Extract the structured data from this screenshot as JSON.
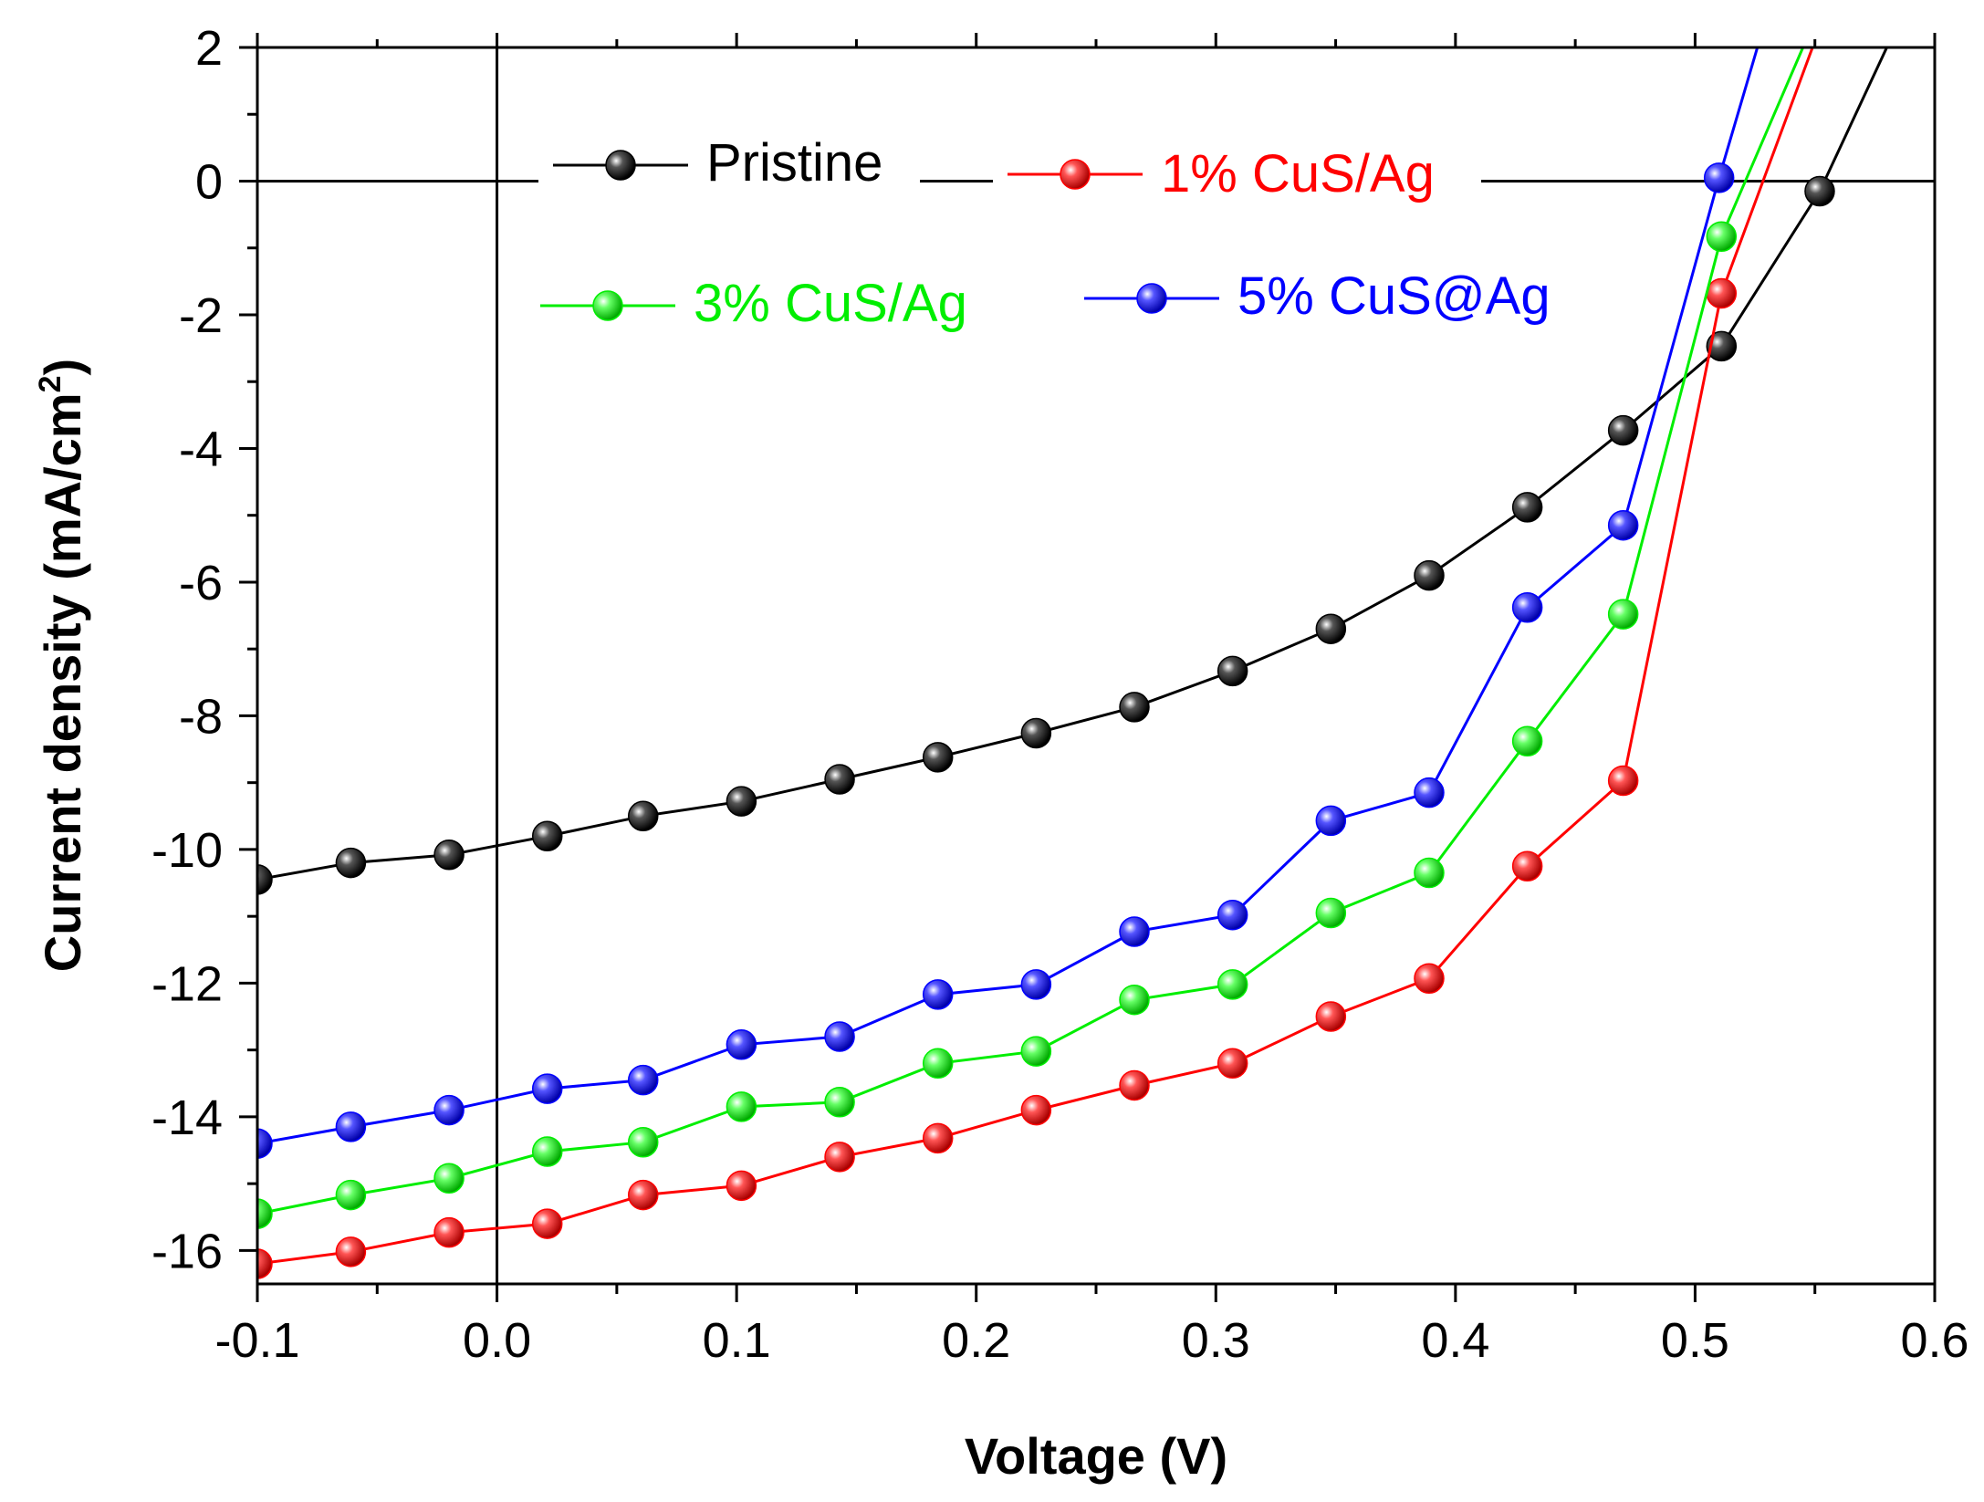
{
  "chart_data": {
    "type": "line",
    "title": "",
    "xlabel": "Voltage (V)",
    "ylabel": "Current density (mA/cm",
    "ylabel_superscript": "2",
    "ylabel_suffix": ")",
    "xlim": [
      -0.1,
      0.6
    ],
    "ylim": [
      -16.5,
      2
    ],
    "xticks": [
      -0.1,
      0.0,
      0.1,
      0.2,
      0.3,
      0.4,
      0.5,
      0.6
    ],
    "xtick_labels": [
      "-0.1",
      "0.0",
      "0.1",
      "0.2",
      "0.3",
      "0.4",
      "0.5",
      "0.6"
    ],
    "yticks": [
      2,
      0,
      -2,
      -4,
      -6,
      -8,
      -10,
      -12,
      -14,
      -16
    ],
    "ytick_labels": [
      "2",
      "0",
      "-2",
      "-4",
      "-6",
      "-8",
      "-10",
      "-12",
      "-14",
      "-16"
    ],
    "grid": false,
    "legend_position": "top-center",
    "series": [
      {
        "name": "Pristine",
        "color": "#000000",
        "x": [
          -0.1,
          -0.061,
          -0.02,
          0.021,
          0.061,
          0.102,
          0.143,
          0.184,
          0.225,
          0.266,
          0.307,
          0.348,
          0.389,
          0.43,
          0.47,
          0.511,
          0.552,
          0.58
        ],
        "y": [
          -10.45,
          -10.2,
          -10.08,
          -9.8,
          -9.5,
          -9.28,
          -8.95,
          -8.62,
          -8.26,
          -7.87,
          -7.33,
          -6.7,
          -5.9,
          -4.88,
          -3.73,
          -2.47,
          -0.15,
          2.0
        ],
        "markers": [
          0,
          1,
          2,
          3,
          4,
          5,
          6,
          7,
          8,
          9,
          10,
          11,
          12,
          13,
          14,
          15,
          16
        ]
      },
      {
        "name": "1% CuS/Ag",
        "color": "#ff0000",
        "x": [
          -0.1,
          -0.061,
          -0.02,
          0.021,
          0.061,
          0.102,
          0.143,
          0.184,
          0.225,
          0.266,
          0.307,
          0.348,
          0.389,
          0.43,
          0.47,
          0.511,
          0.549
        ],
        "y": [
          -16.2,
          -16.02,
          -15.73,
          -15.6,
          -15.17,
          -15.03,
          -14.6,
          -14.32,
          -13.9,
          -13.53,
          -13.2,
          -12.5,
          -11.93,
          -10.25,
          -8.97,
          -1.68,
          2.0
        ],
        "markers": [
          0,
          1,
          2,
          3,
          4,
          5,
          6,
          7,
          8,
          9,
          10,
          11,
          12,
          13,
          14,
          15
        ]
      },
      {
        "name": "3% CuS/Ag",
        "color": "#00ee00",
        "x": [
          -0.1,
          -0.061,
          -0.02,
          0.021,
          0.061,
          0.102,
          0.143,
          0.184,
          0.225,
          0.266,
          0.307,
          0.348,
          0.389,
          0.43,
          0.47,
          0.511,
          0.545
        ],
        "y": [
          -15.45,
          -15.17,
          -14.92,
          -14.52,
          -14.38,
          -13.85,
          -13.78,
          -13.2,
          -13.02,
          -12.25,
          -12.02,
          -10.95,
          -10.35,
          -8.38,
          -6.48,
          -0.83,
          2.0
        ],
        "markers": [
          0,
          1,
          2,
          3,
          4,
          5,
          6,
          7,
          8,
          9,
          10,
          11,
          12,
          13,
          14,
          15
        ]
      },
      {
        "name": "5% CuS@Ag",
        "color": "#0000ff",
        "x": [
          -0.1,
          -0.061,
          -0.02,
          0.021,
          0.061,
          0.102,
          0.143,
          0.184,
          0.225,
          0.266,
          0.307,
          0.348,
          0.389,
          0.43,
          0.47,
          0.51,
          0.526
        ],
        "y": [
          -14.4,
          -14.15,
          -13.9,
          -13.58,
          -13.45,
          -12.92,
          -12.8,
          -12.17,
          -12.02,
          -11.23,
          -10.98,
          -9.57,
          -9.15,
          -6.38,
          -5.15,
          0.05,
          2.0
        ],
        "markers": [
          0,
          1,
          2,
          3,
          4,
          5,
          6,
          7,
          8,
          9,
          10,
          11,
          12,
          13,
          14,
          15
        ]
      }
    ]
  }
}
